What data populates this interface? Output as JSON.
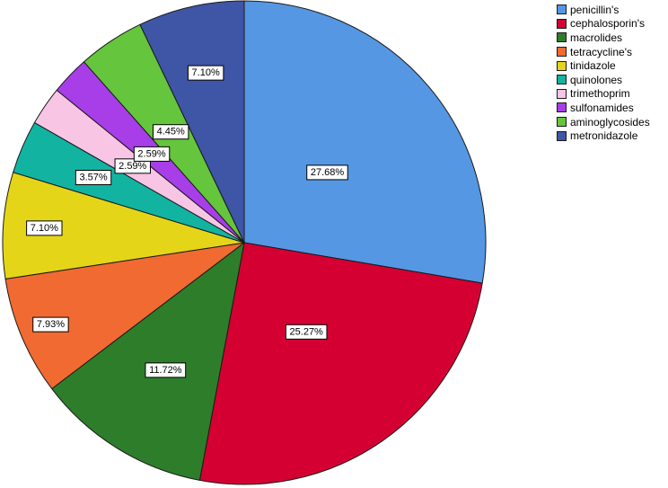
{
  "chart_data": {
    "type": "pie",
    "start_angle_deg": 0,
    "direction": "clockwise",
    "legend_position": "top-right",
    "slices": [
      {
        "label": "penicillin's",
        "value": 27.68,
        "data_label": "27.68%",
        "color": "#5597e3"
      },
      {
        "label": "cephalosporin's",
        "value": 25.27,
        "data_label": "25.27%",
        "color": "#d40032"
      },
      {
        "label": "macrolides",
        "value": 11.72,
        "data_label": "11.72%",
        "color": "#2e7d2a"
      },
      {
        "label": "tetracycline's",
        "value": 7.93,
        "data_label": "7.93%",
        "color": "#f06a32"
      },
      {
        "label": "tinidazole",
        "value": 7.1,
        "data_label": "7.10%",
        "color": "#e5d518"
      },
      {
        "label": "quinolones",
        "value": 3.57,
        "data_label": "3.57%",
        "color": "#13b3a2"
      },
      {
        "label": "trimethoprim",
        "value": 2.59,
        "data_label": "2.59%",
        "color": "#f8c5e4"
      },
      {
        "label": "sulfonamides",
        "value": 2.59,
        "data_label": "2.59%",
        "color": "#a83ee8"
      },
      {
        "label": "aminoglycosides",
        "value": 4.45,
        "data_label": "4.45%",
        "color": "#65c53c"
      },
      {
        "label": "metronidazole",
        "value": 7.1,
        "data_label": "7.10%",
        "color": "#3f55a5"
      }
    ]
  }
}
